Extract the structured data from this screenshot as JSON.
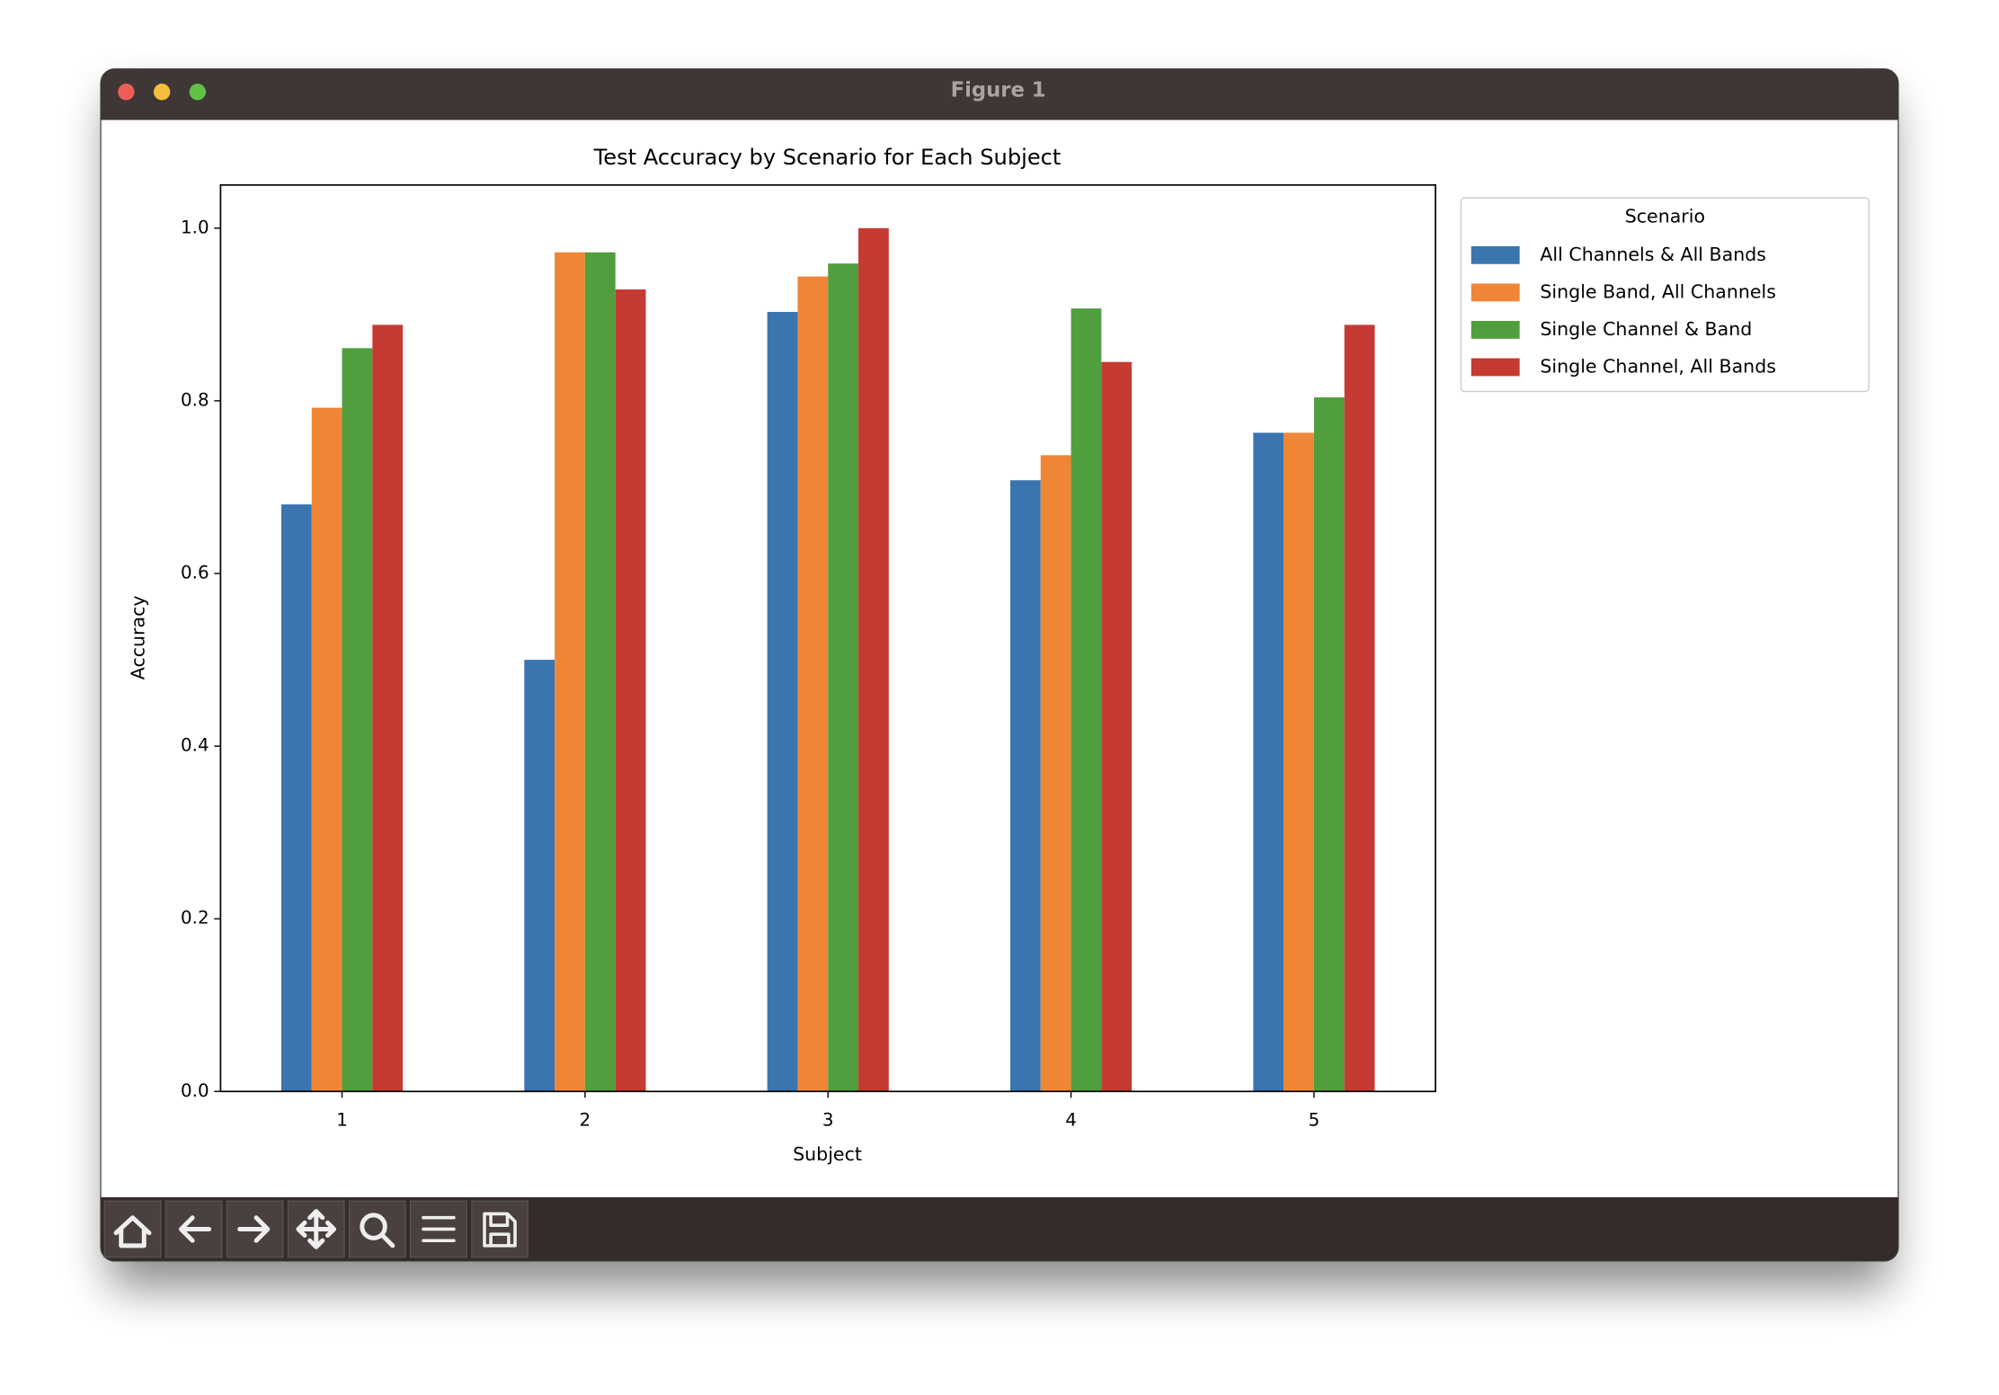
{
  "window_title": "Figure 1",
  "chart_data": {
    "type": "bar",
    "title": "Test Accuracy by Scenario for Each Subject",
    "xlabel": "Subject",
    "ylabel": "Accuracy",
    "categories": [
      "1",
      "2",
      "3",
      "4",
      "5"
    ],
    "series": [
      {
        "name": "All Channels & All Bands",
        "color": "#3a75b0",
        "values": [
          0.68,
          0.5,
          0.903,
          0.708,
          0.763
        ]
      },
      {
        "name": "Single Band, All Channels",
        "color": "#ef8636",
        "values": [
          0.792,
          0.972,
          0.944,
          0.737,
          0.763
        ]
      },
      {
        "name": "Single Channel & Band",
        "color": "#519e3e",
        "values": [
          0.861,
          0.972,
          0.959,
          0.907,
          0.804
        ]
      },
      {
        "name": "Single Channel, All Bands",
        "color": "#c53a32",
        "values": [
          0.888,
          0.929,
          1.0,
          0.845,
          0.888
        ]
      }
    ],
    "ylim": [
      0,
      1.05
    ],
    "yticks": [
      {
        "value": 0,
        "label": "0.0"
      },
      0.2,
      0.4,
      0.6,
      0.8,
      {
        "value": 1,
        "label": "1.0"
      }
    ],
    "legend_title": "Scenario",
    "legend_position": "outside-upper-right",
    "grid": false
  }
}
